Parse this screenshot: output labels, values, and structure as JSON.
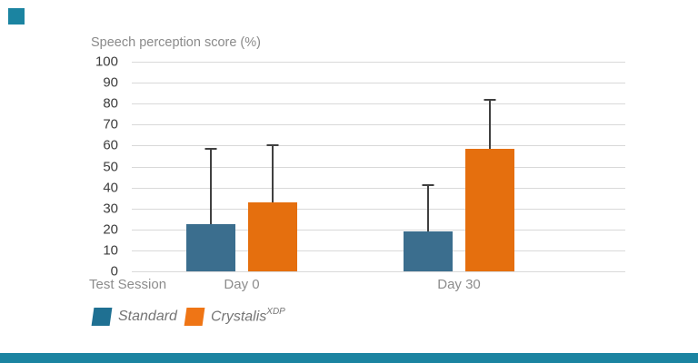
{
  "decorations": {
    "accent_color": "#1b84a1"
  },
  "chart_data": {
    "type": "bar",
    "title": "Speech perception score (%)",
    "xlabel": "Test Session",
    "categories": [
      "Day 0",
      "Day 30"
    ],
    "series": [
      {
        "name": "Standard",
        "superscript": "",
        "bar_color": "#3b6e8e",
        "legend_color": "#1f7092",
        "values": [
          22.5,
          19
        ],
        "error_high": [
          58.5,
          41
        ]
      },
      {
        "name": "Crystalis",
        "superscript": "XDP",
        "bar_color": "#e56f0e",
        "legend_color": "#ef7515",
        "values": [
          33,
          58.5
        ],
        "error_high": [
          60,
          82
        ]
      }
    ],
    "y_ticks": [
      100,
      90,
      80,
      70,
      60,
      50,
      40,
      30,
      20,
      10,
      0
    ],
    "ylim": [
      0,
      100
    ],
    "grid": true,
    "gridline_color": "#d9d9d9",
    "error_bar_color": "#404040",
    "legend_position": "bottom-left"
  }
}
